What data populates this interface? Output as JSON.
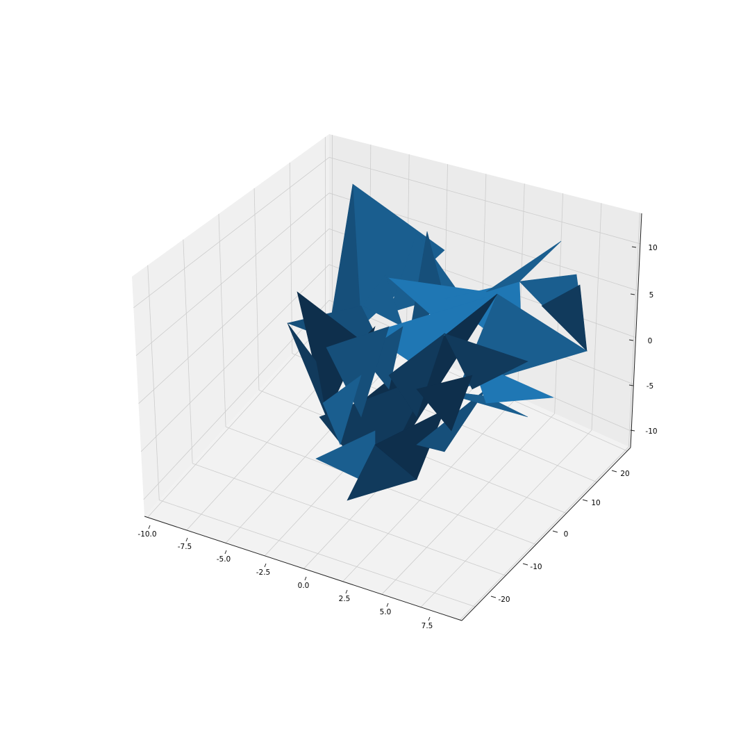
{
  "chart_data": {
    "type": "3d-trisurf",
    "title": "",
    "colors": {
      "surface": "#1f77b4",
      "pane_back": "#f0f0f0",
      "pane_side": "#f5f5f5",
      "pane_floor": "#f2f2f2",
      "grid": "#cccccc"
    },
    "grid": true,
    "axes": {
      "x": {
        "label": "",
        "range": [
          -10.5,
          9
        ],
        "ticks": [
          "-10.0",
          "-7.5",
          "-5.0",
          "-2.5",
          "0.0",
          "2.5",
          "5.0",
          "7.5"
        ]
      },
      "y": {
        "label": "",
        "range": [
          -27,
          25
        ],
        "ticks": [
          "-20",
          "-10",
          "0",
          "10",
          "20"
        ]
      },
      "z": {
        "label": "",
        "range": [
          -12,
          13
        ],
        "ticks": [
          "-10",
          "-5",
          "0",
          "5",
          "10"
        ]
      }
    }
  }
}
